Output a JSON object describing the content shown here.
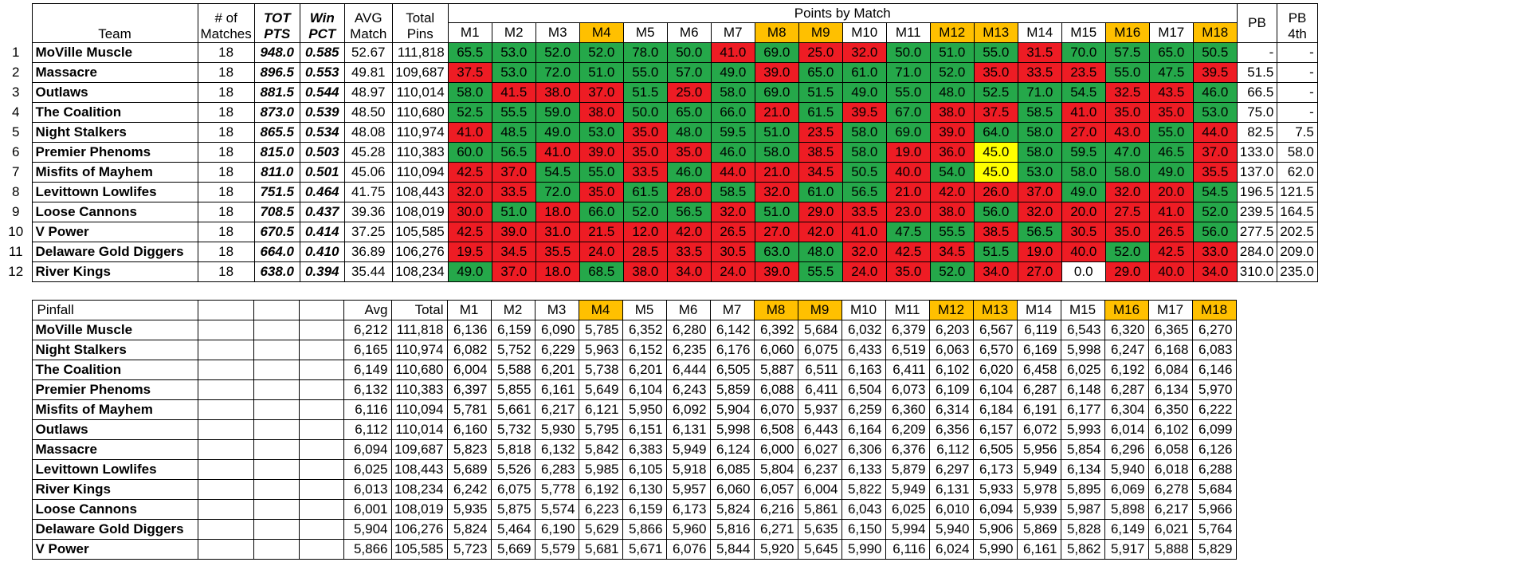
{
  "standings": {
    "headers": {
      "team": "Team",
      "matches": "# of Matches",
      "tot_pts": "TOT PTS",
      "win_pct": "Win PCT",
      "avg_match": "AVG Match",
      "total_pins": "Total Pins",
      "points_by_match": "Points by Match",
      "pb": "PB",
      "pb4th": "PB 4th"
    },
    "match_labels": [
      "M1",
      "M2",
      "M3",
      "M4",
      "M5",
      "M6",
      "M7",
      "M8",
      "M9",
      "M10",
      "M11",
      "M12",
      "M13",
      "M14",
      "M15",
      "M16",
      "M17",
      "M18"
    ],
    "highlight_matches": [
      4,
      8,
      9,
      12,
      13,
      16,
      18
    ],
    "colors": {
      "highlight": "#FFC000",
      "win": "#25A84A",
      "loss": "#EE1C24",
      "tie": "#FFFF00"
    },
    "rows": [
      {
        "rank": "1",
        "team": "MoVille Muscle",
        "matches": "18",
        "tot_pts": "948.0",
        "win_pct": "0.585",
        "avg": "52.67",
        "total_pins": "111,818",
        "points": [
          "65.5",
          "53.0",
          "52.0",
          "52.0",
          "78.0",
          "50.0",
          "41.0",
          "69.0",
          "25.0",
          "32.0",
          "50.0",
          "51.0",
          "55.0",
          "31.5",
          "70.0",
          "57.5",
          "65.0",
          "50.5"
        ],
        "colors": [
          "g",
          "g",
          "g",
          "g",
          "g",
          "g",
          "r",
          "g",
          "r",
          "r",
          "g",
          "g",
          "g",
          "r",
          "g",
          "g",
          "g",
          "g"
        ],
        "pb": "-",
        "pb4th": "-"
      },
      {
        "rank": "2",
        "team": "Massacre",
        "matches": "18",
        "tot_pts": "896.5",
        "win_pct": "0.553",
        "avg": "49.81",
        "total_pins": "109,687",
        "points": [
          "37.5",
          "53.0",
          "72.0",
          "51.0",
          "55.0",
          "57.0",
          "49.0",
          "39.0",
          "65.0",
          "61.0",
          "71.0",
          "52.0",
          "35.0",
          "33.5",
          "23.5",
          "55.0",
          "47.5",
          "39.5"
        ],
        "colors": [
          "r",
          "g",
          "g",
          "g",
          "g",
          "g",
          "g",
          "r",
          "g",
          "g",
          "g",
          "g",
          "r",
          "r",
          "r",
          "g",
          "g",
          "r"
        ],
        "pb": "51.5",
        "pb4th": "-"
      },
      {
        "rank": "3",
        "team": "Outlaws",
        "matches": "18",
        "tot_pts": "881.5",
        "win_pct": "0.544",
        "avg": "48.97",
        "total_pins": "110,014",
        "points": [
          "58.0",
          "41.5",
          "38.0",
          "37.0",
          "51.5",
          "25.0",
          "58.0",
          "69.0",
          "51.5",
          "49.0",
          "55.0",
          "48.0",
          "52.5",
          "71.0",
          "54.5",
          "32.5",
          "43.5",
          "46.0"
        ],
        "colors": [
          "g",
          "r",
          "r",
          "r",
          "g",
          "r",
          "g",
          "g",
          "g",
          "g",
          "g",
          "g",
          "g",
          "g",
          "g",
          "r",
          "r",
          "g"
        ],
        "pb": "66.5",
        "pb4th": "-"
      },
      {
        "rank": "4",
        "team": "The Coalition",
        "matches": "18",
        "tot_pts": "873.0",
        "win_pct": "0.539",
        "avg": "48.50",
        "total_pins": "110,680",
        "points": [
          "52.5",
          "55.5",
          "59.0",
          "38.0",
          "50.0",
          "65.0",
          "66.0",
          "21.0",
          "61.5",
          "39.5",
          "67.0",
          "38.0",
          "37.5",
          "58.5",
          "41.0",
          "35.0",
          "35.0",
          "53.0"
        ],
        "colors": [
          "g",
          "g",
          "g",
          "r",
          "g",
          "g",
          "g",
          "r",
          "g",
          "r",
          "g",
          "r",
          "r",
          "g",
          "r",
          "r",
          "r",
          "g"
        ],
        "pb": "75.0",
        "pb4th": "-"
      },
      {
        "rank": "5",
        "team": "Night Stalkers",
        "matches": "18",
        "tot_pts": "865.5",
        "win_pct": "0.534",
        "avg": "48.08",
        "total_pins": "110,974",
        "points": [
          "41.0",
          "48.5",
          "49.0",
          "53.0",
          "35.0",
          "48.0",
          "59.5",
          "51.0",
          "23.5",
          "58.0",
          "69.0",
          "39.0",
          "64.0",
          "58.0",
          "27.0",
          "43.0",
          "55.0",
          "44.0"
        ],
        "colors": [
          "r",
          "g",
          "g",
          "g",
          "r",
          "g",
          "g",
          "g",
          "r",
          "g",
          "g",
          "r",
          "g",
          "g",
          "r",
          "r",
          "g",
          "r"
        ],
        "pb": "82.5",
        "pb4th": "7.5"
      },
      {
        "rank": "6",
        "team": "Premier Phenoms",
        "matches": "18",
        "tot_pts": "815.0",
        "win_pct": "0.503",
        "avg": "45.28",
        "total_pins": "110,383",
        "points": [
          "60.0",
          "56.5",
          "41.0",
          "39.0",
          "35.0",
          "35.0",
          "46.0",
          "58.0",
          "38.5",
          "58.0",
          "19.0",
          "36.0",
          "45.0",
          "58.0",
          "59.5",
          "47.0",
          "46.5",
          "37.0"
        ],
        "colors": [
          "g",
          "g",
          "r",
          "r",
          "r",
          "r",
          "g",
          "g",
          "r",
          "g",
          "r",
          "r",
          "y",
          "g",
          "g",
          "g",
          "g",
          "r"
        ],
        "pb": "133.0",
        "pb4th": "58.0"
      },
      {
        "rank": "7",
        "team": "Misfits of Mayhem",
        "matches": "18",
        "tot_pts": "811.0",
        "win_pct": "0.501",
        "avg": "45.06",
        "total_pins": "110,094",
        "points": [
          "42.5",
          "37.0",
          "54.5",
          "55.0",
          "33.5",
          "46.0",
          "44.0",
          "21.0",
          "34.5",
          "50.5",
          "40.0",
          "54.0",
          "45.0",
          "53.0",
          "58.0",
          "58.0",
          "49.0",
          "35.5"
        ],
        "colors": [
          "r",
          "r",
          "g",
          "g",
          "r",
          "g",
          "r",
          "r",
          "r",
          "g",
          "r",
          "g",
          "y",
          "g",
          "g",
          "g",
          "g",
          "r"
        ],
        "pb": "137.0",
        "pb4th": "62.0"
      },
      {
        "rank": "8",
        "team": "Levittown Lowlifes",
        "matches": "18",
        "tot_pts": "751.5",
        "win_pct": "0.464",
        "avg": "41.75",
        "total_pins": "108,443",
        "points": [
          "32.0",
          "33.5",
          "72.0",
          "35.0",
          "61.5",
          "28.0",
          "58.5",
          "32.0",
          "61.0",
          "56.5",
          "21.0",
          "42.0",
          "26.0",
          "37.0",
          "49.0",
          "32.0",
          "20.0",
          "54.5"
        ],
        "colors": [
          "r",
          "r",
          "g",
          "r",
          "g",
          "r",
          "g",
          "r",
          "g",
          "g",
          "r",
          "r",
          "r",
          "r",
          "g",
          "r",
          "r",
          "g"
        ],
        "pb": "196.5",
        "pb4th": "121.5"
      },
      {
        "rank": "9",
        "team": "Loose Cannons",
        "matches": "18",
        "tot_pts": "708.5",
        "win_pct": "0.437",
        "avg": "39.36",
        "total_pins": "108,019",
        "points": [
          "30.0",
          "51.0",
          "18.0",
          "66.0",
          "52.0",
          "56.5",
          "32.0",
          "51.0",
          "29.0",
          "33.5",
          "23.0",
          "38.0",
          "56.0",
          "32.0",
          "20.0",
          "27.5",
          "41.0",
          "52.0"
        ],
        "colors": [
          "r",
          "g",
          "r",
          "g",
          "g",
          "g",
          "r",
          "g",
          "r",
          "r",
          "r",
          "r",
          "g",
          "r",
          "r",
          "r",
          "r",
          "g"
        ],
        "pb": "239.5",
        "pb4th": "164.5"
      },
      {
        "rank": "10",
        "team": "V Power",
        "matches": "18",
        "tot_pts": "670.5",
        "win_pct": "0.414",
        "avg": "37.25",
        "total_pins": "105,585",
        "points": [
          "42.5",
          "39.0",
          "31.0",
          "21.5",
          "12.0",
          "42.0",
          "26.5",
          "27.0",
          "42.0",
          "41.0",
          "47.5",
          "55.5",
          "38.5",
          "56.5",
          "30.5",
          "35.0",
          "26.5",
          "56.0"
        ],
        "colors": [
          "r",
          "r",
          "r",
          "r",
          "r",
          "r",
          "r",
          "r",
          "r",
          "r",
          "g",
          "g",
          "r",
          "g",
          "r",
          "r",
          "r",
          "g"
        ],
        "pb": "277.5",
        "pb4th": "202.5"
      },
      {
        "rank": "11",
        "team": "Delaware Gold Diggers",
        "matches": "18",
        "tot_pts": "664.0",
        "win_pct": "0.410",
        "avg": "36.89",
        "total_pins": "106,276",
        "points": [
          "19.5",
          "34.5",
          "35.5",
          "24.0",
          "28.5",
          "33.5",
          "30.5",
          "63.0",
          "48.0",
          "32.0",
          "42.5",
          "34.5",
          "51.5",
          "19.0",
          "40.0",
          "52.0",
          "42.5",
          "33.0"
        ],
        "colors": [
          "r",
          "r",
          "r",
          "r",
          "r",
          "r",
          "r",
          "g",
          "g",
          "r",
          "r",
          "r",
          "g",
          "r",
          "r",
          "g",
          "r",
          "r"
        ],
        "pb": "284.0",
        "pb4th": "209.0"
      },
      {
        "rank": "12",
        "team": "River Kings",
        "matches": "18",
        "tot_pts": "638.0",
        "win_pct": "0.394",
        "avg": "35.44",
        "total_pins": "108,234",
        "points": [
          "49.0",
          "37.0",
          "18.0",
          "68.5",
          "38.0",
          "34.0",
          "24.0",
          "39.0",
          "55.5",
          "24.0",
          "35.0",
          "52.0",
          "34.0",
          "27.0",
          "0.0",
          "29.0",
          "40.0",
          "34.0"
        ],
        "colors": [
          "g",
          "r",
          "r",
          "g",
          "r",
          "r",
          "r",
          "r",
          "g",
          "r",
          "r",
          "g",
          "r",
          "r",
          "w",
          "r",
          "r",
          "r"
        ],
        "pb": "310.0",
        "pb4th": "235.0"
      }
    ]
  },
  "pinfall": {
    "headers": {
      "label": "Pinfall",
      "avg": "Avg",
      "total": "Total"
    },
    "rows": [
      {
        "team": "MoVille Muscle",
        "avg": "6,212",
        "total": "111,818",
        "m": [
          "6,136",
          "6,159",
          "6,090",
          "5,785",
          "6,352",
          "6,280",
          "6,142",
          "6,392",
          "5,684",
          "6,032",
          "6,379",
          "6,203",
          "6,567",
          "6,119",
          "6,543",
          "6,320",
          "6,365",
          "6,270"
        ]
      },
      {
        "team": "Night Stalkers",
        "avg": "6,165",
        "total": "110,974",
        "m": [
          "6,082",
          "5,752",
          "6,229",
          "5,963",
          "6,152",
          "6,235",
          "6,176",
          "6,060",
          "6,075",
          "6,433",
          "6,519",
          "6,063",
          "6,570",
          "6,169",
          "5,998",
          "6,247",
          "6,168",
          "6,083"
        ]
      },
      {
        "team": "The Coalition",
        "avg": "6,149",
        "total": "110,680",
        "m": [
          "6,004",
          "5,588",
          "6,201",
          "5,738",
          "6,201",
          "6,444",
          "6,505",
          "5,887",
          "6,511",
          "6,163",
          "6,411",
          "6,102",
          "6,020",
          "6,458",
          "6,025",
          "6,192",
          "6,084",
          "6,146"
        ]
      },
      {
        "team": "Premier Phenoms",
        "avg": "6,132",
        "total": "110,383",
        "m": [
          "6,397",
          "5,855",
          "6,161",
          "5,649",
          "6,104",
          "6,243",
          "5,859",
          "6,088",
          "6,411",
          "6,504",
          "6,073",
          "6,109",
          "6,104",
          "6,287",
          "6,148",
          "6,287",
          "6,134",
          "5,970"
        ]
      },
      {
        "team": "Misfits of Mayhem",
        "avg": "6,116",
        "total": "110,094",
        "m": [
          "5,781",
          "5,661",
          "6,217",
          "6,121",
          "5,950",
          "6,092",
          "5,904",
          "6,070",
          "5,937",
          "6,259",
          "6,360",
          "6,314",
          "6,184",
          "6,191",
          "6,177",
          "6,304",
          "6,350",
          "6,222"
        ]
      },
      {
        "team": "Outlaws",
        "avg": "6,112",
        "total": "110,014",
        "m": [
          "6,160",
          "5,732",
          "5,930",
          "5,795",
          "6,151",
          "6,131",
          "5,998",
          "6,508",
          "6,443",
          "6,164",
          "6,209",
          "6,356",
          "6,157",
          "6,072",
          "5,993",
          "6,014",
          "6,102",
          "6,099"
        ]
      },
      {
        "team": "Massacre",
        "avg": "6,094",
        "total": "109,687",
        "m": [
          "5,823",
          "5,818",
          "6,132",
          "5,842",
          "6,383",
          "5,949",
          "6,124",
          "6,000",
          "6,027",
          "6,306",
          "6,376",
          "6,112",
          "6,505",
          "5,956",
          "5,854",
          "6,296",
          "6,058",
          "6,126"
        ]
      },
      {
        "team": "Levittown Lowlifes",
        "avg": "6,025",
        "total": "108,443",
        "m": [
          "5,689",
          "5,526",
          "6,283",
          "5,985",
          "6,105",
          "5,918",
          "6,085",
          "5,804",
          "6,237",
          "6,133",
          "5,879",
          "6,297",
          "6,173",
          "5,949",
          "6,134",
          "5,940",
          "6,018",
          "6,288"
        ]
      },
      {
        "team": "River Kings",
        "avg": "6,013",
        "total": "108,234",
        "m": [
          "6,242",
          "6,075",
          "5,778",
          "6,192",
          "6,130",
          "5,957",
          "6,060",
          "6,057",
          "6,004",
          "5,822",
          "5,949",
          "6,131",
          "5,933",
          "5,978",
          "5,895",
          "6,069",
          "6,278",
          "5,684"
        ]
      },
      {
        "team": "Loose Cannons",
        "avg": "6,001",
        "total": "108,019",
        "m": [
          "5,935",
          "5,875",
          "5,574",
          "6,223",
          "6,159",
          "6,173",
          "5,824",
          "6,216",
          "5,861",
          "6,043",
          "6,025",
          "6,010",
          "6,094",
          "5,939",
          "5,987",
          "5,898",
          "6,217",
          "5,966"
        ]
      },
      {
        "team": "Delaware Gold Diggers",
        "avg": "5,904",
        "total": "106,276",
        "m": [
          "5,824",
          "5,464",
          "6,190",
          "5,629",
          "5,866",
          "5,960",
          "5,816",
          "6,271",
          "5,635",
          "6,150",
          "5,994",
          "5,940",
          "5,906",
          "5,869",
          "5,828",
          "6,149",
          "6,021",
          "5,764"
        ]
      },
      {
        "team": "V Power",
        "avg": "5,866",
        "total": "105,585",
        "m": [
          "5,723",
          "5,669",
          "5,579",
          "5,681",
          "5,671",
          "6,076",
          "5,844",
          "5,920",
          "5,645",
          "5,990",
          "6,116",
          "6,024",
          "5,990",
          "6,161",
          "5,862",
          "5,917",
          "5,888",
          "5,829"
        ]
      }
    ]
  }
}
